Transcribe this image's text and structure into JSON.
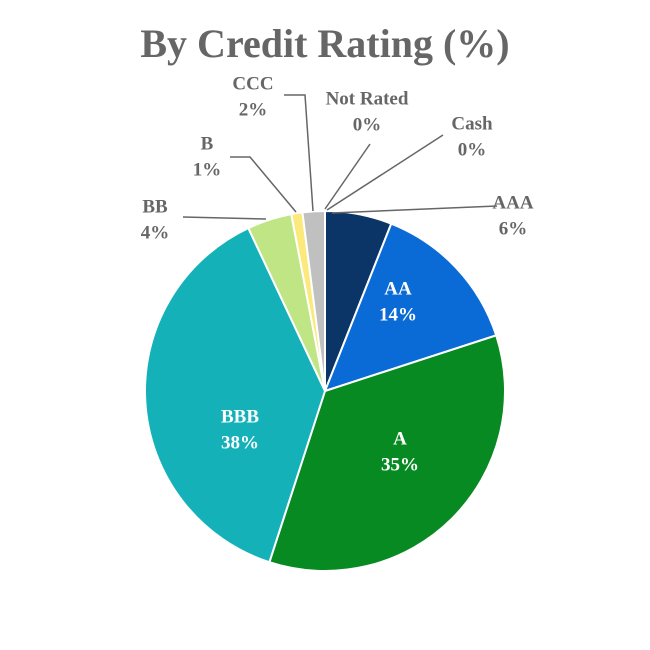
{
  "chart_data": {
    "type": "pie",
    "title": "By Credit Rating (%)",
    "categories": [
      "AAA",
      "AA",
      "A",
      "BBB",
      "BB",
      "B",
      "CCC",
      "Not Rated",
      "Cash"
    ],
    "values": [
      6,
      14,
      35,
      38,
      4,
      1,
      2,
      0,
      0
    ],
    "value_labels": [
      "6%",
      "14%",
      "35%",
      "38%",
      "4%",
      "1%",
      "2%",
      "0%",
      "0%"
    ],
    "colors": [
      "#0b3467",
      "#0a6bd6",
      "#078a21",
      "#14b1b8",
      "#c0e584",
      "#fbe97c",
      "#c0c0c0",
      "#7f7f7f",
      "#404040"
    ]
  }
}
